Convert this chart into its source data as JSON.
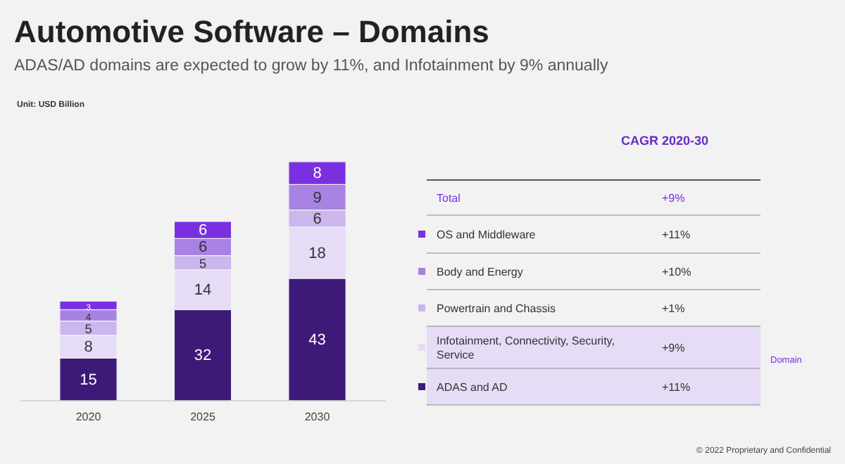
{
  "chart_data": {
    "type": "bar",
    "stacked": true,
    "title": "Automotive Software – Domains",
    "subtitle": "ADAS/AD domains are expected to grow by 11%, and Infotainment by 9% annually",
    "categories": [
      "2020",
      "2025",
      "2030"
    ],
    "data_labels": true,
    "legend": "right",
    "legend_title": "CAGR 2020-30",
    "series": [
      {
        "name": "ADAS and AD",
        "color": "#3d1a78",
        "values": [
          15,
          32,
          43
        ]
      },
      {
        "name": "Infotainment, Connectivity, Security, Service",
        "color": "#e6dcf5",
        "values": [
          8,
          14,
          18
        ]
      },
      {
        "name": "Powertrain and Chassis",
        "color": "#cbb6ee",
        "values": [
          5,
          5,
          6
        ]
      },
      {
        "name": "Body and Energy",
        "color": "#a882e2",
        "values": [
          4,
          6,
          9
        ]
      },
      {
        "name": "OS and Middleware",
        "color": "#7a30e0",
        "values": [
          3,
          6,
          8
        ]
      }
    ],
    "annotations": [
      "Unit: USD Billion",
      "Total",
      "+9%",
      "+11%",
      "+10%",
      "+1%",
      "+9%",
      "+11%",
      "Domain",
      "© 2022 Proprietary and Confidential"
    ]
  }
}
